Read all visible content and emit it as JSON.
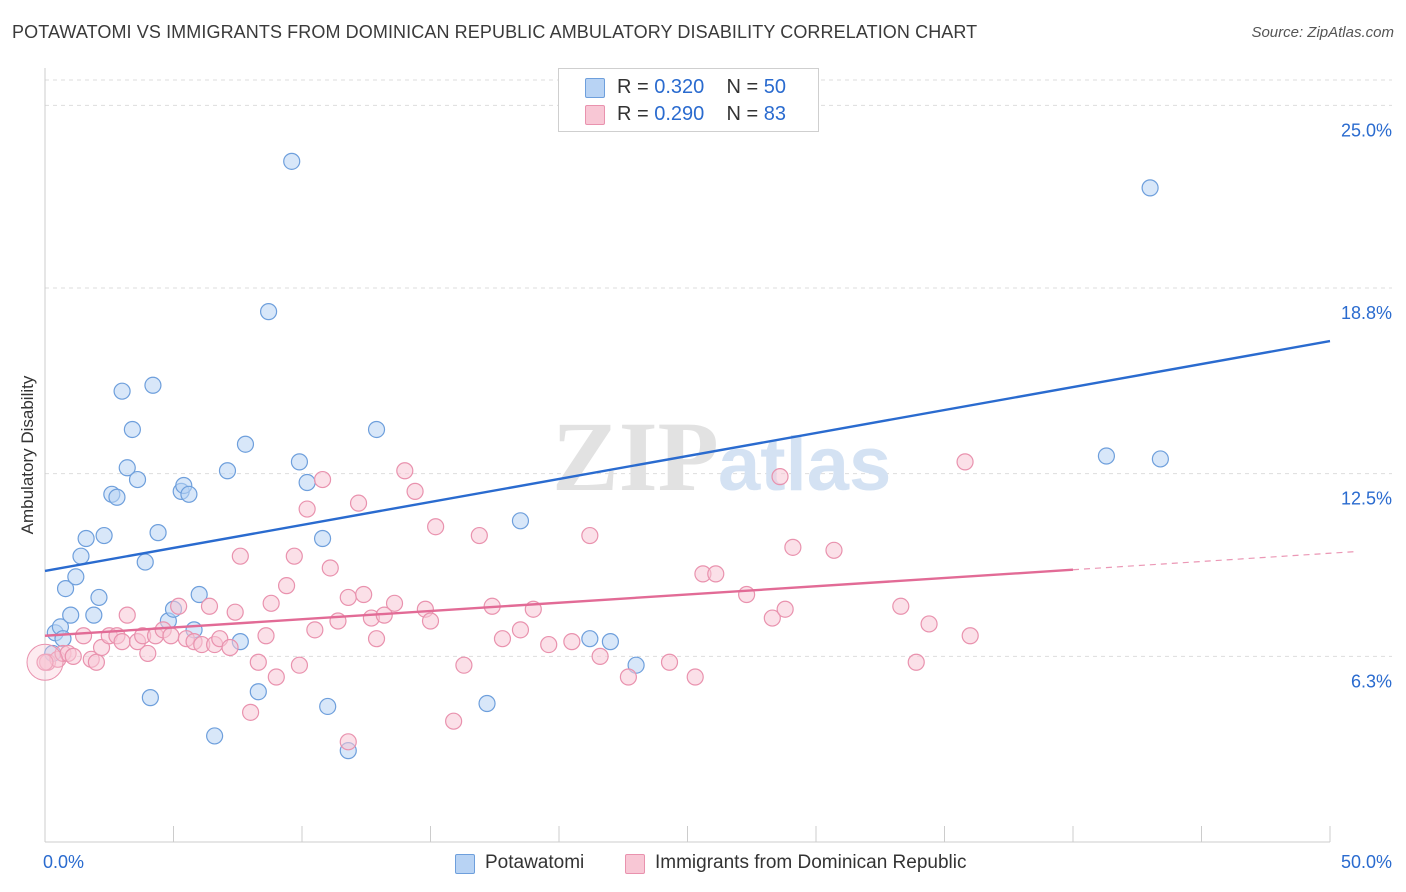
{
  "title": "POTAWATOMI VS IMMIGRANTS FROM DOMINICAN REPUBLIC AMBULATORY DISABILITY CORRELATION CHART",
  "source": "Source: ZipAtlas.com",
  "watermark": {
    "zip": "ZIP",
    "atlas": "atlas"
  },
  "legend_top": [
    {
      "r_label": "R = ",
      "r_value": "0.320",
      "n_label": "N = ",
      "n_value": "50"
    },
    {
      "r_label": "R = ",
      "r_value": "0.290",
      "n_label": "N = ",
      "n_value": "83"
    }
  ],
  "legend_bottom": [
    "Potawatomi",
    "Immigrants from Dominican Republic"
  ],
  "colors": {
    "blue_fill": "#b8d3f4",
    "blue_stroke": "#6e9fdc",
    "blue_line": "#2a6bcf",
    "pink_fill": "#f8c7d5",
    "pink_stroke": "#e992ae",
    "pink_line": "#e26b96",
    "axis_label": "#2a6bcf",
    "grid": "#dddddd"
  },
  "chart_data": {
    "type": "scatter",
    "title": "POTAWATOMI VS IMMIGRANTS FROM DOMINICAN REPUBLIC AMBULATORY DISABILITY CORRELATION CHART",
    "xlabel": "",
    "ylabel": "Ambulatory Disability",
    "xlim": [
      0,
      50
    ],
    "ylim": [
      0,
      26.2
    ],
    "x_tick_labels": [
      "0.0%",
      "50.0%"
    ],
    "y_ticks": [
      6.3,
      12.5,
      18.8,
      25.0
    ],
    "y_tick_labels": [
      "6.3%",
      "12.5%",
      "18.8%",
      "25.0%"
    ],
    "grid": true,
    "series": [
      {
        "name": "Potawatomi",
        "color": "blue",
        "points": [
          [
            0.3,
            6.4
          ],
          [
            0.4,
            7.1
          ],
          [
            0.6,
            7.3
          ],
          [
            0.7,
            6.9
          ],
          [
            0.8,
            8.6
          ],
          [
            1.0,
            7.7
          ],
          [
            1.2,
            9.0
          ],
          [
            1.4,
            9.7
          ],
          [
            1.6,
            10.3
          ],
          [
            1.9,
            7.7
          ],
          [
            2.1,
            8.3
          ],
          [
            2.3,
            10.4
          ],
          [
            2.6,
            11.8
          ],
          [
            2.8,
            11.7
          ],
          [
            3.0,
            15.3
          ],
          [
            3.2,
            12.7
          ],
          [
            3.4,
            14.0
          ],
          [
            3.6,
            12.3
          ],
          [
            3.9,
            9.5
          ],
          [
            4.2,
            15.5
          ],
          [
            4.4,
            10.5
          ],
          [
            4.8,
            7.5
          ],
          [
            5.0,
            7.9
          ],
          [
            5.3,
            11.9
          ],
          [
            5.4,
            12.1
          ],
          [
            5.6,
            11.8
          ],
          [
            5.8,
            7.2
          ],
          [
            6.0,
            8.4
          ],
          [
            6.6,
            3.6
          ],
          [
            7.1,
            12.6
          ],
          [
            7.6,
            6.8
          ],
          [
            7.8,
            13.5
          ],
          [
            8.3,
            5.1
          ],
          [
            8.7,
            18.0
          ],
          [
            9.6,
            23.1
          ],
          [
            9.9,
            12.9
          ],
          [
            10.2,
            12.2
          ],
          [
            10.8,
            10.3
          ],
          [
            11.0,
            4.6
          ],
          [
            11.8,
            3.1
          ],
          [
            12.9,
            14.0
          ],
          [
            17.2,
            4.7
          ],
          [
            18.5,
            10.9
          ],
          [
            21.2,
            6.9
          ],
          [
            22.0,
            6.8
          ],
          [
            23.0,
            6.0
          ],
          [
            41.3,
            13.1
          ],
          [
            43.4,
            13.0
          ],
          [
            43.0,
            22.2
          ],
          [
            4.1,
            4.9
          ]
        ],
        "trend": {
          "x": [
            0,
            50
          ],
          "y": [
            9.2,
            17.0
          ],
          "solid_until_x": 50
        }
      },
      {
        "name": "Immigrants from Dominican Republic",
        "color": "pink",
        "points": [
          [
            0.1,
            6.1
          ],
          [
            0.5,
            6.2
          ],
          [
            0.7,
            6.4
          ],
          [
            0.9,
            6.4
          ],
          [
            1.1,
            6.3
          ],
          [
            1.5,
            7.0
          ],
          [
            1.8,
            6.2
          ],
          [
            2.0,
            6.1
          ],
          [
            2.2,
            6.6
          ],
          [
            2.5,
            7.0
          ],
          [
            2.8,
            7.0
          ],
          [
            3.0,
            6.8
          ],
          [
            3.2,
            7.7
          ],
          [
            3.6,
            6.8
          ],
          [
            3.8,
            7.0
          ],
          [
            4.0,
            6.4
          ],
          [
            4.3,
            7.0
          ],
          [
            4.6,
            7.2
          ],
          [
            4.9,
            7.0
          ],
          [
            5.2,
            8.0
          ],
          [
            5.5,
            6.9
          ],
          [
            5.8,
            6.8
          ],
          [
            6.1,
            6.7
          ],
          [
            6.4,
            8.0
          ],
          [
            6.6,
            6.7
          ],
          [
            6.8,
            6.9
          ],
          [
            7.2,
            6.6
          ],
          [
            7.4,
            7.8
          ],
          [
            7.6,
            9.7
          ],
          [
            8.0,
            4.4
          ],
          [
            8.3,
            6.1
          ],
          [
            8.6,
            7.0
          ],
          [
            8.8,
            8.1
          ],
          [
            9.0,
            5.6
          ],
          [
            9.4,
            8.7
          ],
          [
            9.7,
            9.7
          ],
          [
            9.9,
            6.0
          ],
          [
            10.2,
            11.3
          ],
          [
            10.5,
            7.2
          ],
          [
            10.8,
            12.3
          ],
          [
            11.1,
            9.3
          ],
          [
            11.4,
            7.5
          ],
          [
            11.8,
            8.3
          ],
          [
            11.8,
            3.4
          ],
          [
            12.2,
            11.5
          ],
          [
            12.4,
            8.4
          ],
          [
            12.7,
            7.6
          ],
          [
            12.9,
            6.9
          ],
          [
            13.2,
            7.7
          ],
          [
            13.6,
            8.1
          ],
          [
            14.0,
            12.6
          ],
          [
            14.4,
            11.9
          ],
          [
            14.8,
            7.9
          ],
          [
            15.0,
            7.5
          ],
          [
            15.2,
            10.7
          ],
          [
            15.9,
            4.1
          ],
          [
            16.3,
            6.0
          ],
          [
            16.9,
            10.4
          ],
          [
            17.4,
            8.0
          ],
          [
            17.8,
            6.9
          ],
          [
            18.5,
            7.2
          ],
          [
            19.0,
            7.9
          ],
          [
            19.6,
            6.7
          ],
          [
            20.5,
            6.8
          ],
          [
            21.2,
            10.4
          ],
          [
            21.6,
            6.3
          ],
          [
            22.7,
            5.6
          ],
          [
            24.3,
            6.1
          ],
          [
            25.3,
            5.6
          ],
          [
            25.6,
            9.1
          ],
          [
            26.1,
            9.1
          ],
          [
            27.3,
            8.4
          ],
          [
            28.3,
            7.6
          ],
          [
            28.8,
            7.9
          ],
          [
            28.6,
            12.4
          ],
          [
            29.1,
            10.0
          ],
          [
            30.7,
            9.9
          ],
          [
            33.3,
            8.0
          ],
          [
            33.9,
            6.1
          ],
          [
            34.4,
            7.4
          ],
          [
            35.8,
            12.9
          ],
          [
            36.0,
            7.0
          ],
          [
            0.0,
            6.1
          ]
        ],
        "trend": {
          "x": [
            0,
            50
          ],
          "y": [
            7.0,
            9.8
          ],
          "solid_until_x": 40
        }
      }
    ]
  }
}
